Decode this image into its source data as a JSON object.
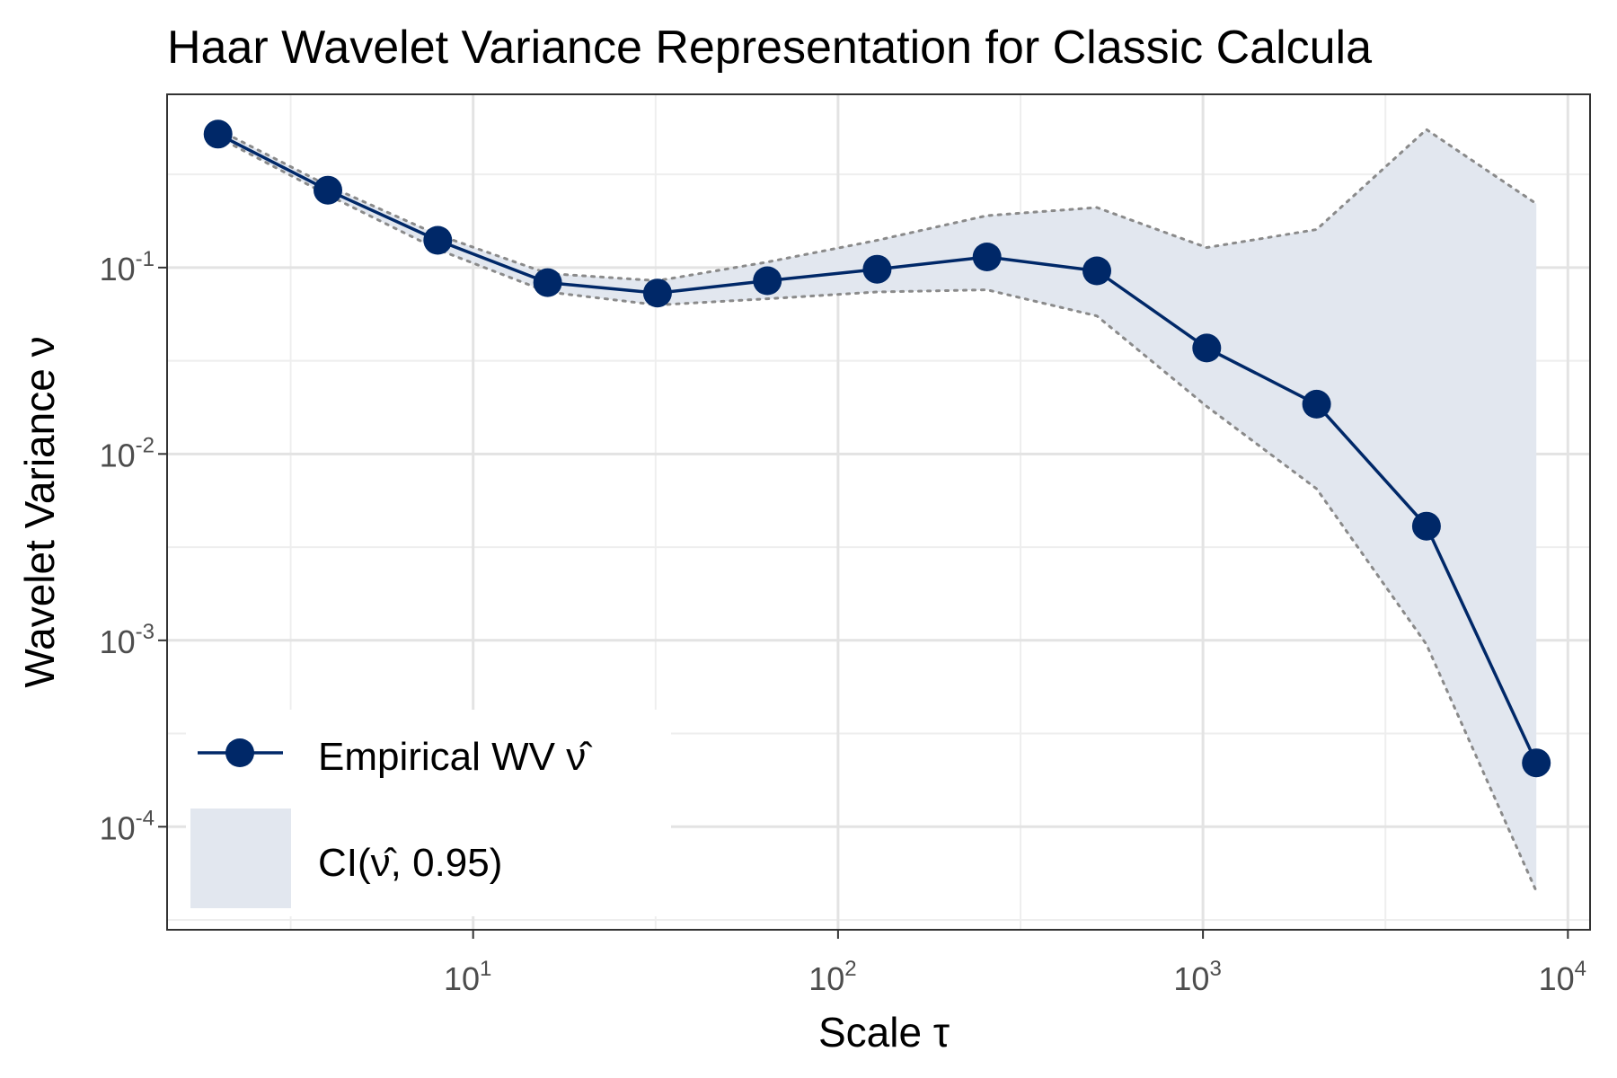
{
  "chart_data": {
    "type": "line",
    "title": "Haar Wavelet Variance Representation for Classic Calcula",
    "xlabel": "Scale τ",
    "ylabel": "Wavelet Variance ν",
    "x_scale": "log10",
    "y_scale": "log10",
    "xlim": [
      1.45,
      11500
    ],
    "ylim": [
      2.8e-05,
      0.85
    ],
    "grid": true,
    "legend_position": "bottom-left",
    "x_ticks": [
      {
        "value": 10,
        "base": "10",
        "exp": "1"
      },
      {
        "value": 100,
        "base": "10",
        "exp": "2"
      },
      {
        "value": 1000,
        "base": "10",
        "exp": "3"
      },
      {
        "value": 10000,
        "base": "10",
        "exp": "4"
      }
    ],
    "y_ticks": [
      {
        "value": 0.1,
        "base": "10",
        "exp": "-1"
      },
      {
        "value": 0.01,
        "base": "10",
        "exp": "-2"
      },
      {
        "value": 0.001,
        "base": "10",
        "exp": "-3"
      },
      {
        "value": 0.0001,
        "base": "10",
        "exp": "-4"
      }
    ],
    "x": [
      2,
      4,
      8,
      16,
      32,
      64,
      128,
      256,
      512,
      1024,
      2048,
      4096,
      8192
    ],
    "series": [
      {
        "name": "Empirical WV ν̂",
        "role": "line-markers",
        "color": "#002868",
        "values": [
          0.52,
          0.26,
          0.14,
          0.083,
          0.073,
          0.085,
          0.098,
          0.114,
          0.096,
          0.037,
          0.0185,
          0.0041,
          0.00022
        ]
      },
      {
        "name": "CI(ν̂, 0.95)",
        "role": "band",
        "color": "#e2e7ef",
        "line_color": "#8a8a8a",
        "lower": [
          0.5,
          0.245,
          0.125,
          0.074,
          0.063,
          0.068,
          0.074,
          0.076,
          0.055,
          0.018,
          0.0065,
          0.00095,
          4.5e-05
        ],
        "upper": [
          0.55,
          0.275,
          0.15,
          0.093,
          0.085,
          0.107,
          0.14,
          0.19,
          0.21,
          0.128,
          0.16,
          0.55,
          0.22
        ]
      }
    ]
  },
  "legend": {
    "items": [
      {
        "label": "Empirical WV ν̂"
      },
      {
        "label": "CI(ν̂, 0.95)"
      }
    ]
  }
}
